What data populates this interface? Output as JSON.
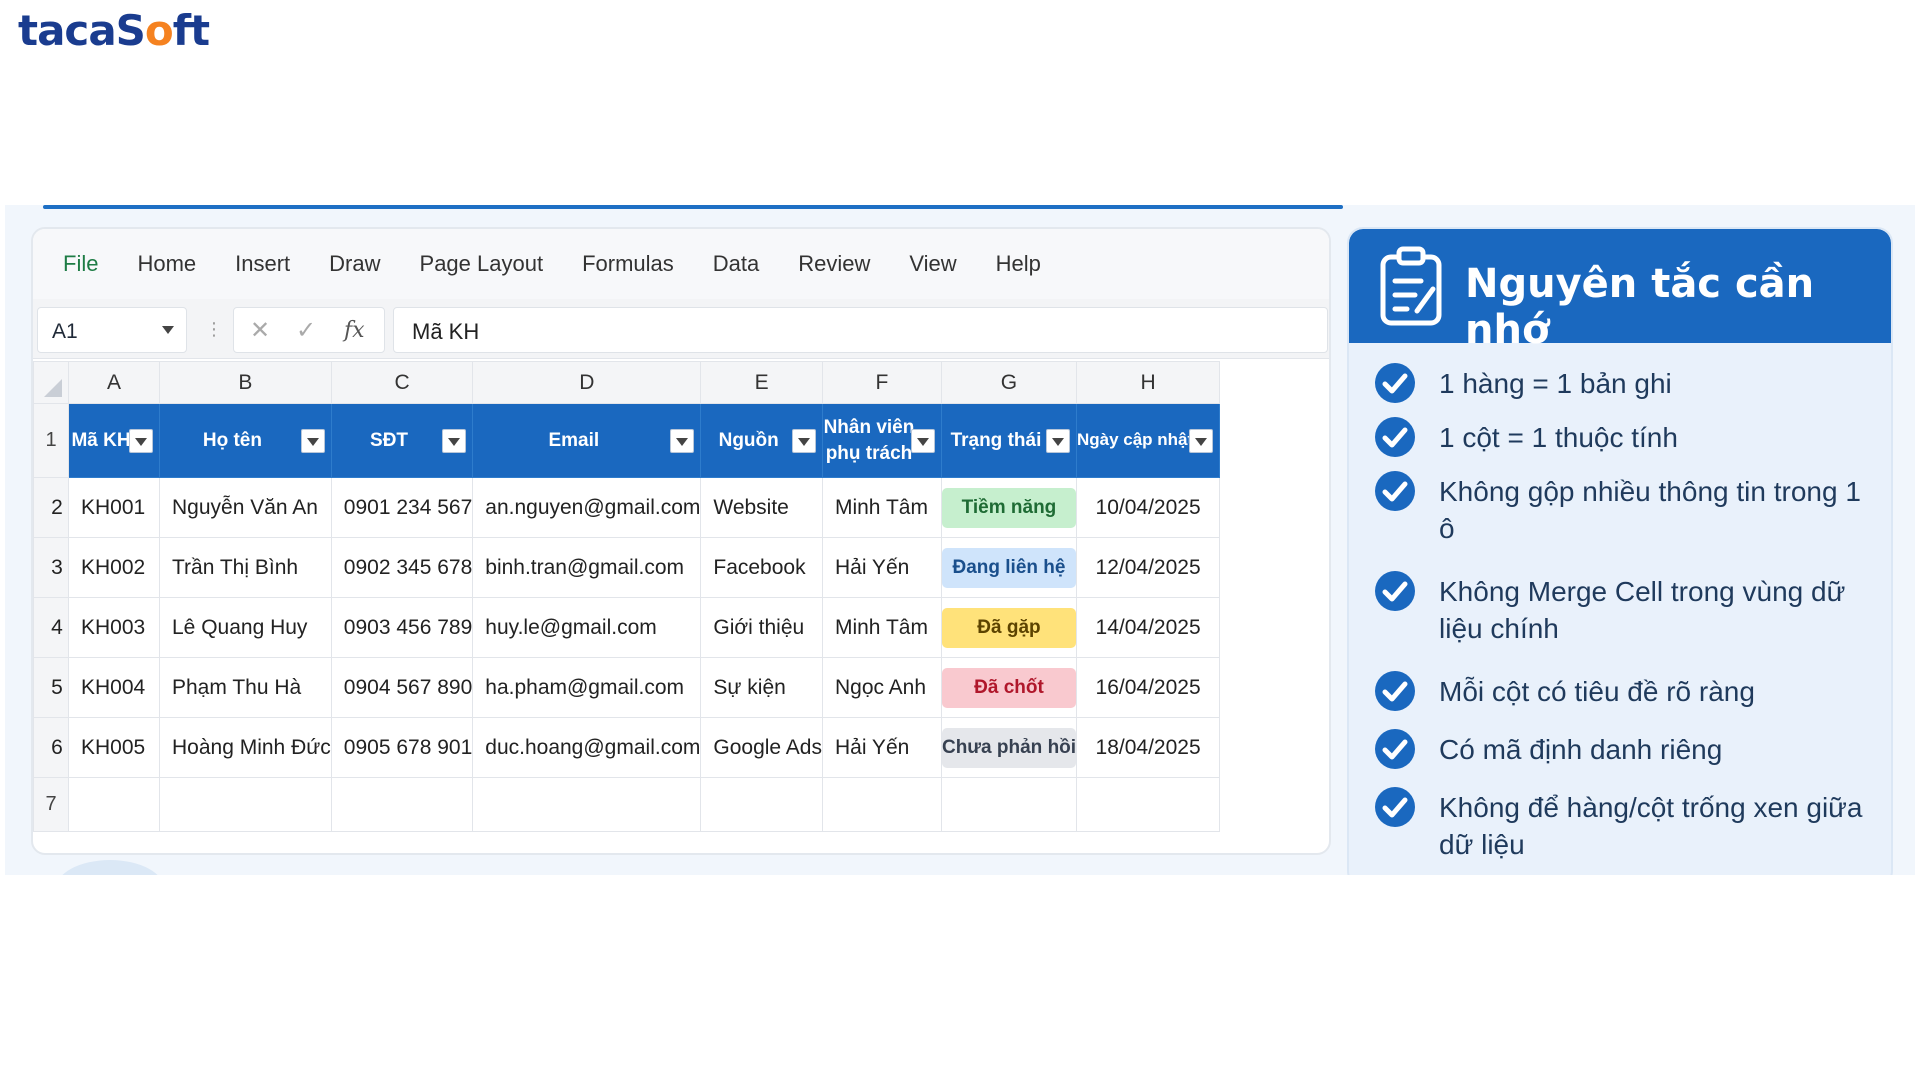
{
  "brand": {
    "logo_prefix": "taca",
    "logo_o": "o",
    "logo_suffix": "ft",
    "logo_s": "S"
  },
  "menu": [
    "File",
    "Home",
    "Insert",
    "Draw",
    "Page Layout",
    "Formulas",
    "Data",
    "Review",
    "View",
    "Help"
  ],
  "formula_bar": {
    "name_box": "A1",
    "content": "Mã KH",
    "fx_label": "fx"
  },
  "columns": [
    "A",
    "B",
    "C",
    "D",
    "E",
    "F",
    "G",
    "H"
  ],
  "row_numbers": [
    "1",
    "2",
    "3",
    "4",
    "5",
    "6",
    "7"
  ],
  "headers": [
    "Mã KH",
    "Họ tên",
    "SĐT",
    "Email",
    "Nguồn",
    "Nhân viên phụ trách",
    "Trạng thái",
    "Ngày cập nhật"
  ],
  "rows": [
    {
      "id": "KH001",
      "name": "Nguyễn Văn An",
      "phone": "0901 234 567",
      "email": "an.nguyen@gmail.com",
      "source": "Website",
      "staff": "Minh Tâm",
      "status": "Tiềm năng",
      "date": "10/04/2025"
    },
    {
      "id": "KH002",
      "name": "Trần Thị Bình",
      "phone": "0902 345 678",
      "email": "binh.tran@gmail.com",
      "source": "Facebook",
      "staff": "Hải Yến",
      "status": "Đang liên hệ",
      "date": "12/04/2025"
    },
    {
      "id": "KH003",
      "name": "Lê Quang Huy",
      "phone": "0903 456 789",
      "email": "huy.le@gmail.com",
      "source": "Giới thiệu",
      "staff": "Minh Tâm",
      "status": "Đã gặp",
      "date": "14/04/2025"
    },
    {
      "id": "KH004",
      "name": "Phạm Thu Hà",
      "phone": "0904 567 890",
      "email": "ha.pham@gmail.com",
      "source": "Sự kiện",
      "staff": "Ngọc Anh",
      "status": "Đã chốt",
      "date": "16/04/2025"
    },
    {
      "id": "KH005",
      "name": "Hoàng Minh Đức",
      "phone": "0905 678 901",
      "email": "duc.hoang@gmail.com",
      "source": "Google Ads",
      "staff": "Hải Yến",
      "status": "Chưa phản hồi",
      "date": "18/04/2025"
    }
  ],
  "status_colors": {
    "Tiềm năng": {
      "bg": "#c6efce",
      "fg": "#1e6b34"
    },
    "Đang liên hệ": {
      "bg": "#cfe4fb",
      "fg": "#1a4f8c"
    },
    "Đã gặp": {
      "bg": "#ffe27a",
      "fg": "#5c4300"
    },
    "Đã chốt": {
      "bg": "#f9c9cf",
      "fg": "#b0172b"
    },
    "Chưa phản hồi": {
      "bg": "#e5e7eb",
      "fg": "#374151"
    }
  },
  "colors": {
    "accent": "#1a68bf",
    "menu_active": "#1e7c45",
    "check": "#1a68bf"
  },
  "panel": {
    "title": "Nguyên tắc cần nhớ",
    "rules": [
      "1 hàng = 1 bản ghi",
      "1 cột = 1 thuộc tính",
      "Không gộp nhiều thông tin trong 1 ô",
      "Không Merge Cell trong vùng dữ liệu chính",
      "Mỗi cột có tiêu đề rõ ràng",
      "Có mã định danh riêng",
      "Không để hàng/cột trống xen giữa dữ liệu"
    ]
  }
}
